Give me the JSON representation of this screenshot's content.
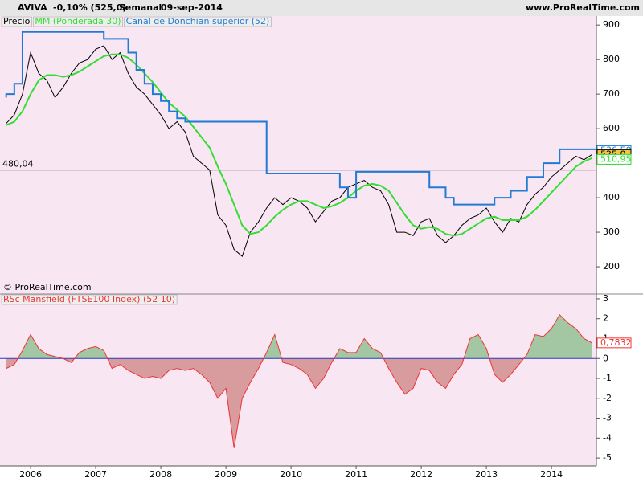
{
  "header": {
    "symbol": "AVIVA",
    "change": "-0,10% (525,0)",
    "period": "Semanal",
    "date": "09-sep-2014",
    "site": "www.ProRealTime.com",
    "copyright": "© ProRealTime.com"
  },
  "chart_data": [
    {
      "type": "line",
      "x": [
        2005.625,
        2005.75,
        2005.875,
        2006,
        2006.125,
        2006.25,
        2006.375,
        2006.5,
        2006.625,
        2006.75,
        2006.875,
        2007,
        2007.125,
        2007.25,
        2007.375,
        2007.5,
        2007.625,
        2007.75,
        2007.875,
        2008,
        2008.125,
        2008.25,
        2008.375,
        2008.5,
        2008.625,
        2008.75,
        2008.875,
        2009,
        2009.125,
        2009.25,
        2009.375,
        2009.5,
        2009.625,
        2009.75,
        2009.875,
        2010,
        2010.125,
        2010.25,
        2010.375,
        2010.5,
        2010.625,
        2010.75,
        2010.875,
        2011,
        2011.125,
        2011.25,
        2011.375,
        2011.5,
        2011.625,
        2011.75,
        2011.875,
        2012,
        2012.125,
        2012.25,
        2012.375,
        2012.5,
        2012.625,
        2012.75,
        2012.875,
        2013,
        2013.125,
        2013.25,
        2013.375,
        2013.5,
        2013.625,
        2013.75,
        2013.875,
        2014,
        2014.125,
        2014.25,
        2014.375,
        2014.5,
        2014.625
      ],
      "series": [
        {
          "name": "Precio",
          "color": "#000000",
          "style": "line",
          "values": [
            615,
            640,
            700,
            820,
            760,
            740,
            690,
            720,
            760,
            790,
            800,
            830,
            840,
            800,
            820,
            760,
            720,
            700,
            670,
            640,
            600,
            620,
            590,
            520,
            500,
            480,
            350,
            320,
            250,
            230,
            300,
            330,
            370,
            400,
            380,
            400,
            390,
            370,
            330,
            360,
            390,
            400,
            430,
            440,
            450,
            430,
            420,
            380,
            300,
            300,
            290,
            330,
            340,
            290,
            270,
            290,
            320,
            340,
            350,
            370,
            330,
            300,
            340,
            330,
            380,
            410,
            430,
            460,
            480,
            500,
            520,
            510,
            525
          ]
        },
        {
          "name": "MM (Ponderada 30)",
          "color": "#33dd33",
          "style": "line",
          "values": [
            610,
            620,
            650,
            700,
            740,
            755,
            755,
            750,
            755,
            765,
            780,
            795,
            810,
            815,
            815,
            805,
            785,
            760,
            735,
            705,
            675,
            655,
            635,
            605,
            575,
            545,
            490,
            440,
            380,
            320,
            295,
            300,
            320,
            345,
            365,
            380,
            390,
            390,
            380,
            370,
            375,
            385,
            400,
            420,
            435,
            440,
            435,
            420,
            385,
            350,
            320,
            310,
            315,
            310,
            295,
            290,
            295,
            310,
            325,
            340,
            345,
            335,
            335,
            335,
            345,
            365,
            390,
            415,
            440,
            465,
            490,
            505,
            515
          ]
        },
        {
          "name": "Canal de Donchian superior (52)",
          "color": "#1f7bd4",
          "style": "step",
          "values": [
            690,
            700,
            730,
            880,
            880,
            880,
            880,
            880,
            880,
            880,
            880,
            880,
            880,
            860,
            860,
            860,
            820,
            770,
            730,
            700,
            680,
            650,
            630,
            620,
            620,
            620,
            620,
            620,
            620,
            620,
            620,
            620,
            620,
            470,
            470,
            470,
            470,
            470,
            470,
            470,
            470,
            470,
            430,
            400,
            475,
            475,
            475,
            475,
            475,
            475,
            475,
            475,
            475,
            430,
            430,
            400,
            380,
            380,
            380,
            380,
            380,
            400,
            400,
            420,
            420,
            460,
            460,
            500,
            500,
            540,
            540,
            540,
            540
          ]
        }
      ],
      "xlim": [
        2005.53,
        2014.69
      ],
      "ylim": [
        121,
        926
      ],
      "yticks": [
        200,
        300,
        400,
        500,
        600,
        700,
        800,
        900
      ],
      "hline": {
        "value": 480.04,
        "label": "480,04"
      },
      "tags": [
        {
          "value": 536.5,
          "label": "536,50",
          "color": "#1f7bd4"
        },
        {
          "value": 525,
          "label": "525,0",
          "color": "#000000"
        },
        {
          "value": 510.95,
          "label": "510,95",
          "color": "#33dd33"
        }
      ]
    },
    {
      "type": "area",
      "x": [
        2005.625,
        2005.75,
        2005.875,
        2006,
        2006.125,
        2006.25,
        2006.375,
        2006.5,
        2006.625,
        2006.75,
        2006.875,
        2007,
        2007.125,
        2007.25,
        2007.375,
        2007.5,
        2007.625,
        2007.75,
        2007.875,
        2008,
        2008.125,
        2008.25,
        2008.375,
        2008.5,
        2008.625,
        2008.75,
        2008.875,
        2009,
        2009.125,
        2009.25,
        2009.375,
        2009.5,
        2009.625,
        2009.75,
        2009.875,
        2010,
        2010.125,
        2010.25,
        2010.375,
        2010.5,
        2010.625,
        2010.75,
        2010.875,
        2011,
        2011.125,
        2011.25,
        2011.375,
        2011.5,
        2011.625,
        2011.75,
        2011.875,
        2012,
        2012.125,
        2012.25,
        2012.375,
        2012.5,
        2012.625,
        2012.75,
        2012.875,
        2013,
        2013.125,
        2013.25,
        2013.375,
        2013.5,
        2013.625,
        2013.75,
        2013.875,
        2014,
        2014.125,
        2014.25,
        2014.375,
        2014.5,
        2014.625
      ],
      "series": [
        {
          "name": "RSc Mansfield (FTSE100 Index) (52 10)",
          "color": "#ee3333",
          "values": [
            -0.5,
            -0.3,
            0.4,
            1.2,
            0.5,
            0.2,
            0.1,
            0,
            -0.2,
            0.3,
            0.5,
            0.6,
            0.4,
            -0.5,
            -0.3,
            -0.6,
            -0.8,
            -1,
            -0.9,
            -1,
            -0.6,
            -0.5,
            -0.6,
            -0.5,
            -0.8,
            -1.2,
            -2,
            -1.5,
            -4.5,
            -2,
            -1.2,
            -0.5,
            0.3,
            1.2,
            -0.2,
            -0.3,
            -0.5,
            -0.8,
            -1.5,
            -1,
            -0.2,
            0.5,
            0.3,
            0.3,
            1,
            0.5,
            0.3,
            -0.5,
            -1.2,
            -1.8,
            -1.5,
            -0.5,
            -0.6,
            -1.2,
            -1.5,
            -0.8,
            -0.3,
            1,
            1.2,
            0.5,
            -0.8,
            -1.2,
            -0.8,
            -0.3,
            0.2,
            1.2,
            1.1,
            1.5,
            2.2,
            1.8,
            1.5,
            1,
            0.78
          ]
        }
      ],
      "xlim": [
        2005.53,
        2014.69
      ],
      "ylim": [
        -5.4,
        3.24
      ],
      "yticks": [
        3,
        2,
        1,
        0,
        -1,
        -2,
        -3,
        -4,
        -5
      ],
      "xticks": [
        2006,
        2007,
        2008,
        2009,
        2010,
        2011,
        2012,
        2013,
        2014
      ],
      "tags": [
        {
          "value": 0.7832,
          "label": "0,7832",
          "color": "#ee3333"
        }
      ]
    }
  ]
}
